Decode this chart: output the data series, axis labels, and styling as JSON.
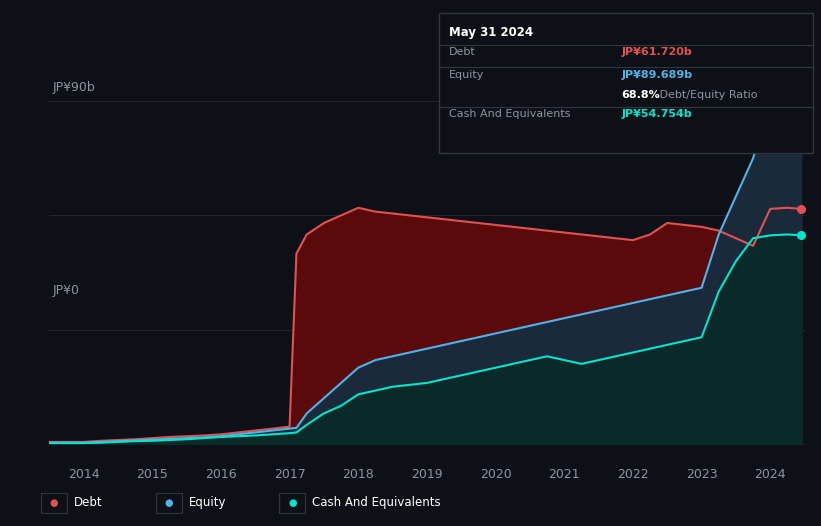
{
  "background_color": "#0d1117",
  "grid_color": "#21262d",
  "ylabel_top": "JP¥90b",
  "ylabel_bottom": "JP¥0",
  "x_labels": [
    "2014",
    "2015",
    "2016",
    "2017",
    "2018",
    "2019",
    "2020",
    "2021",
    "2022",
    "2023",
    "2024"
  ],
  "debt_color": "#e05252",
  "equity_color": "#4fb3e8",
  "cash_color": "#00e5cc",
  "debt_fill_color": "#5a0a0a",
  "equity_fill_color": "#1a2a3a",
  "cash_fill_color": "#0a2a2a",
  "tooltip_border": "#30363d",
  "tooltip_title": "May 31 2024",
  "tooltip_debt_label": "Debt",
  "tooltip_debt_value": "JP¥61.720b",
  "tooltip_equity_label": "Equity",
  "tooltip_equity_value": "JP¥89.689b",
  "tooltip_ratio": "68.8%",
  "tooltip_ratio_label": " Debt/Equity Ratio",
  "tooltip_cash_label": "Cash And Equivalents",
  "tooltip_cash_value": "JP¥54.754b",
  "legend_items": [
    "Debt",
    "Equity",
    "Cash And Equivalents"
  ],
  "years": [
    2013.5,
    2014.0,
    2014.25,
    2014.5,
    2014.75,
    2015.0,
    2015.25,
    2015.5,
    2015.75,
    2016.0,
    2016.25,
    2016.5,
    2016.75,
    2017.0,
    2017.1,
    2017.25,
    2017.5,
    2017.75,
    2018.0,
    2018.25,
    2018.5,
    2018.75,
    2019.0,
    2019.25,
    2019.5,
    2019.75,
    2020.0,
    2020.25,
    2020.5,
    2020.75,
    2021.0,
    2021.25,
    2021.5,
    2021.75,
    2022.0,
    2022.25,
    2022.5,
    2022.75,
    2023.0,
    2023.25,
    2023.5,
    2023.75,
    2024.0,
    2024.25,
    2024.45
  ],
  "debt": [
    0.5,
    0.5,
    0.8,
    1.0,
    1.2,
    1.5,
    1.8,
    2.0,
    2.2,
    2.5,
    3.0,
    3.5,
    4.0,
    4.5,
    50.0,
    55.0,
    58.0,
    60.0,
    62.0,
    61.0,
    60.5,
    60.0,
    59.5,
    59.0,
    58.5,
    58.0,
    57.5,
    57.0,
    56.5,
    56.0,
    55.5,
    55.0,
    54.5,
    54.0,
    53.5,
    55.0,
    58.0,
    57.5,
    57.0,
    56.0,
    54.0,
    52.0,
    61.72,
    62.0,
    61.72
  ],
  "equity": [
    0.3,
    0.3,
    0.5,
    0.7,
    0.9,
    1.1,
    1.3,
    1.5,
    1.7,
    2.0,
    2.5,
    3.0,
    3.5,
    4.0,
    4.2,
    8.0,
    12.0,
    16.0,
    20.0,
    22.0,
    23.0,
    24.0,
    25.0,
    26.0,
    27.0,
    28.0,
    29.0,
    30.0,
    31.0,
    32.0,
    33.0,
    34.0,
    35.0,
    36.0,
    37.0,
    38.0,
    39.0,
    40.0,
    41.0,
    55.0,
    65.0,
    75.0,
    89.689,
    90.0,
    89.689
  ],
  "cash": [
    0.2,
    0.2,
    0.3,
    0.5,
    0.7,
    0.8,
    1.0,
    1.2,
    1.5,
    1.8,
    2.0,
    2.2,
    2.5,
    2.8,
    3.0,
    5.0,
    8.0,
    10.0,
    13.0,
    14.0,
    15.0,
    15.5,
    16.0,
    17.0,
    18.0,
    19.0,
    20.0,
    21.0,
    22.0,
    23.0,
    22.0,
    21.0,
    22.0,
    23.0,
    24.0,
    25.0,
    26.0,
    27.0,
    28.0,
    40.0,
    48.0,
    54.0,
    54.754,
    55.0,
    54.754
  ]
}
